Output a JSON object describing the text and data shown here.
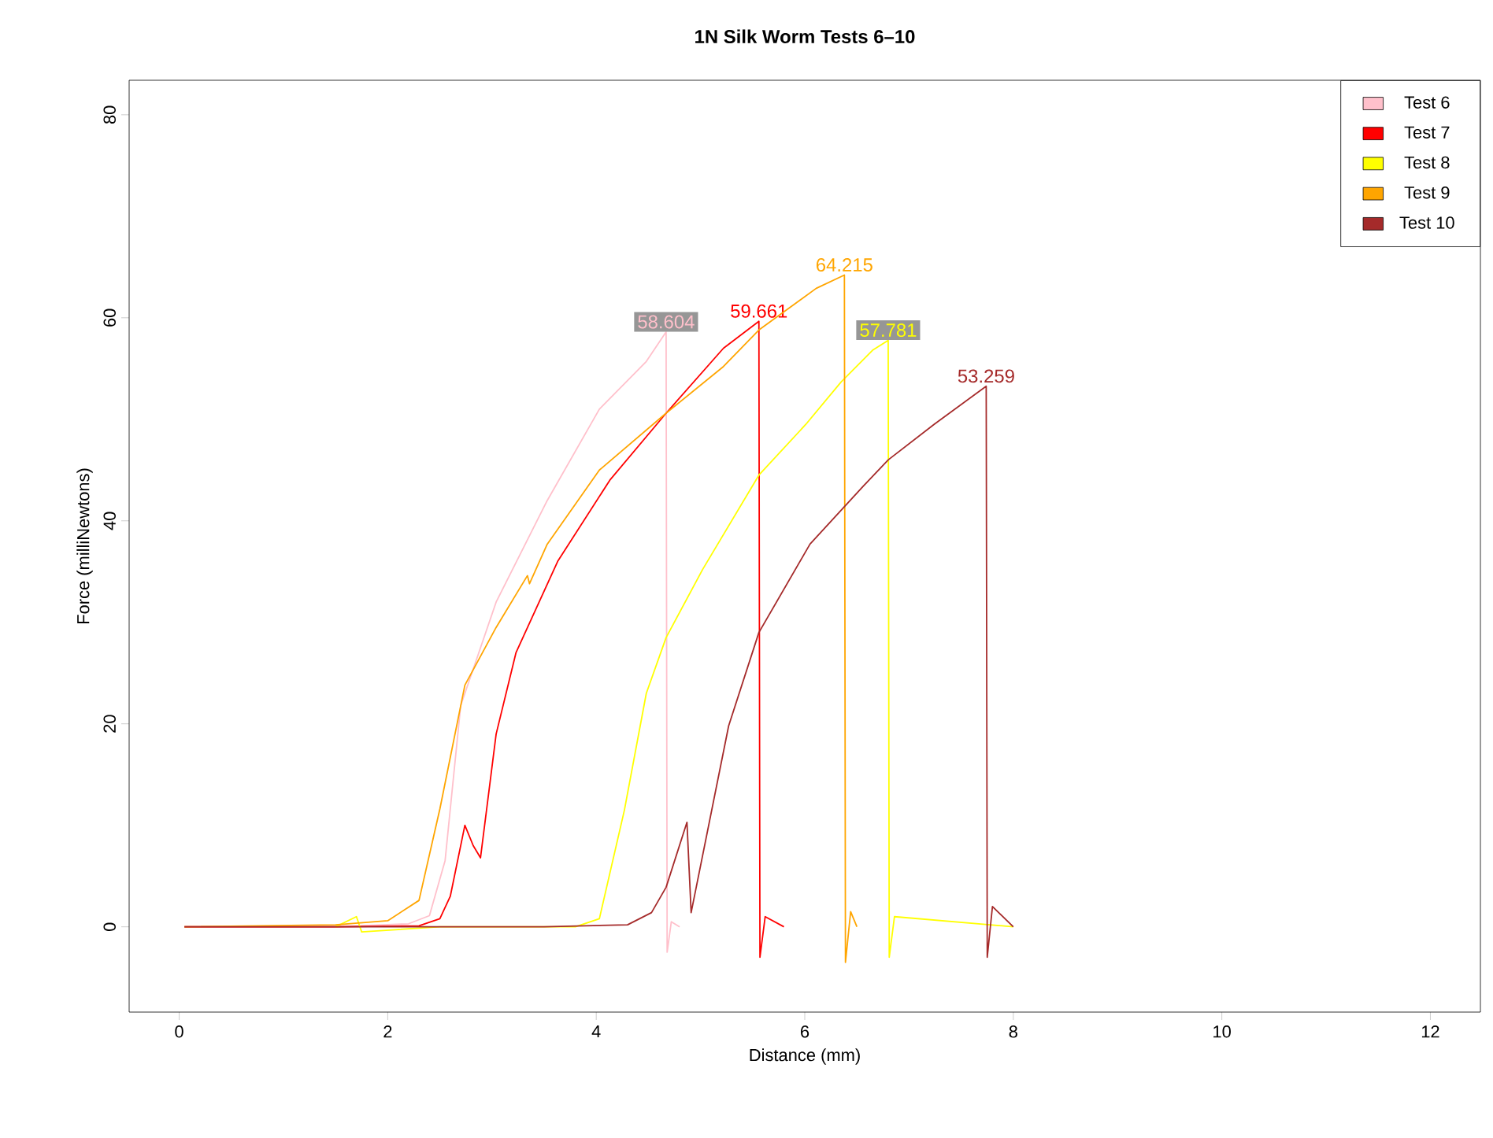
{
  "chart_data": {
    "type": "line",
    "title": "1N Silk Worm Tests 6–10",
    "xlabel": "Distance (mm)",
    "ylabel": "Force (milliNewtons)",
    "xlim": [
      -0.48,
      12.48
    ],
    "ylim": [
      -8.4,
      83.4
    ],
    "xticks": [
      0,
      2,
      4,
      6,
      8,
      10,
      12
    ],
    "yticks": [
      0,
      20,
      40,
      60,
      80
    ],
    "legend": "top right",
    "series": [
      {
        "name": "Test 6",
        "color": "#ffc0cb",
        "x": [
          0.05,
          1.5,
          2.2,
          2.4,
          2.55,
          2.7,
          3.04,
          3.53,
          4.03,
          4.48,
          4.67,
          4.68,
          4.72,
          4.8
        ],
        "values": [
          0,
          0,
          0.3,
          1.1,
          6.5,
          21.8,
          32,
          42,
          51,
          55.7,
          58.604,
          -2.5,
          0.5,
          0
        ],
        "value_labels": [
          null,
          null,
          null,
          null,
          null,
          null,
          null,
          null,
          null,
          null,
          "58.604",
          null,
          null,
          null
        ]
      },
      {
        "name": "Test 7",
        "color": "#ff0000",
        "x": [
          0.05,
          1.5,
          2.3,
          2.5,
          2.6,
          2.74,
          2.82,
          2.89,
          3.04,
          3.23,
          3.63,
          4.13,
          4.67,
          5.22,
          5.56,
          5.57,
          5.62,
          5.8
        ],
        "values": [
          0,
          0,
          0.1,
          0.8,
          3,
          10,
          8,
          6.8,
          19,
          27,
          36,
          44,
          50.6,
          57,
          59.661,
          -3,
          1,
          0
        ],
        "value_labels": [
          null,
          null,
          null,
          null,
          null,
          null,
          null,
          null,
          null,
          null,
          null,
          null,
          null,
          null,
          "59.661",
          null,
          null,
          null
        ]
      },
      {
        "name": "Test 8",
        "color": "#ffff00",
        "x": [
          1.5,
          1.7,
          1.75,
          2.5,
          3.8,
          4.03,
          4.27,
          4.48,
          4.67,
          5.02,
          5.56,
          6.01,
          6.35,
          6.65,
          6.8,
          6.81,
          6.86,
          8.0
        ],
        "values": [
          0,
          1,
          -0.5,
          0,
          0,
          0.8,
          11.5,
          23,
          28.5,
          35.2,
          44.5,
          49.5,
          53.7,
          56.8,
          57.781,
          -3,
          1,
          0
        ],
        "value_labels": [
          null,
          null,
          null,
          null,
          null,
          null,
          null,
          null,
          null,
          null,
          null,
          null,
          null,
          null,
          "57.781",
          null,
          null,
          null
        ]
      },
      {
        "name": "Test 9",
        "color": "#ffa500",
        "x": [
          0.05,
          1.5,
          2.0,
          2.3,
          2.5,
          2.74,
          3.04,
          3.34,
          3.36,
          3.53,
          4.03,
          4.67,
          5.22,
          5.56,
          6.11,
          6.38,
          6.39,
          6.44,
          6.5
        ],
        "values": [
          0,
          0.2,
          0.6,
          2.6,
          11.6,
          23.8,
          29.5,
          34.6,
          33.8,
          37.7,
          45,
          50.6,
          55.2,
          58.8,
          62.9,
          64.215,
          -3.5,
          1.5,
          0
        ],
        "value_labels": [
          null,
          null,
          null,
          null,
          null,
          null,
          null,
          null,
          null,
          null,
          null,
          null,
          null,
          null,
          null,
          "64.215",
          null,
          null,
          null
        ]
      },
      {
        "name": "Test 10",
        "color": "#a52a2a",
        "x": [
          0.05,
          3.5,
          4.3,
          4.53,
          4.67,
          4.87,
          4.91,
          5.27,
          5.56,
          6.05,
          6.56,
          6.8,
          7.24,
          7.74,
          7.75,
          7.8,
          8.0
        ],
        "values": [
          0,
          0,
          0.2,
          1.4,
          3.9,
          10.3,
          1.4,
          19.8,
          29,
          37.7,
          43.4,
          46,
          49.5,
          53.259,
          -3,
          2,
          0
        ],
        "value_labels": [
          null,
          null,
          null,
          null,
          null,
          null,
          null,
          null,
          null,
          null,
          null,
          null,
          null,
          "53.259",
          null,
          null,
          null
        ]
      }
    ]
  }
}
